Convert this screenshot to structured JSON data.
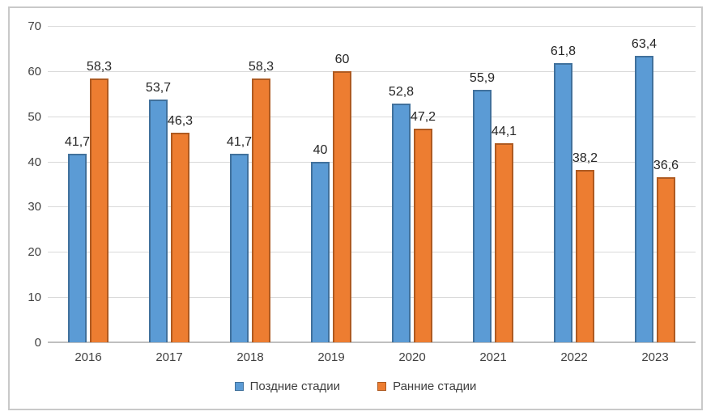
{
  "chart_data": {
    "type": "bar",
    "title": "",
    "categories": [
      "2016",
      "2017",
      "2018",
      "2019",
      "2020",
      "2021",
      "2022",
      "2023"
    ],
    "series": [
      {
        "name": "Поздние стадии",
        "color": "#5b9bd5",
        "border_color": "#41719c",
        "values": [
          41.7,
          53.7,
          41.7,
          40,
          52.8,
          55.9,
          61.8,
          63.4
        ],
        "labels": [
          "41,7",
          "53,7",
          "41,7",
          "40",
          "52,8",
          "55,9",
          "61,8",
          "63,4"
        ]
      },
      {
        "name": "Ранние стадии",
        "color": "#ed7d31",
        "border_color": "#ae5a21",
        "values": [
          58.3,
          46.3,
          58.3,
          60,
          47.2,
          44.1,
          38.2,
          36.6
        ],
        "labels": [
          "58,3",
          "46,3",
          "58,3",
          "60",
          "47,2",
          "44,1",
          "38,2",
          "36,6"
        ]
      }
    ],
    "ylim": [
      0,
      70
    ],
    "yticks": [
      0,
      10,
      20,
      30,
      40,
      50,
      60,
      70
    ],
    "grid": true,
    "legend_position": "bottom",
    "colors": {
      "gridline": "#d9d9d9",
      "axis_line": "#bfbfbf",
      "tick_text": "#404040",
      "data_label_text": "#262626",
      "frame_border": "#c9c9c9",
      "background": "#ffffff"
    }
  }
}
